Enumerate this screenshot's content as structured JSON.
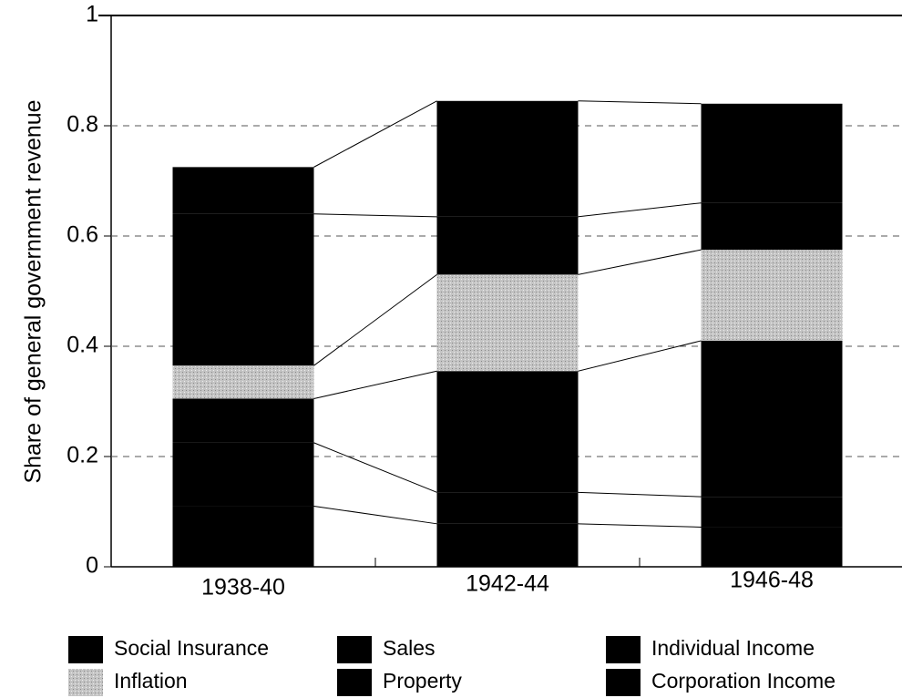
{
  "chart_data": {
    "type": "stacked_bar",
    "y_label": "Share of general government revenue",
    "categories": [
      "1938-40",
      "1942-44",
      "1946-48"
    ],
    "series": [
      {
        "name": "Social Insurance",
        "color": "#000000",
        "values": [
          0.11,
          0.078,
          0.072
        ]
      },
      {
        "name": "Sales",
        "color": "#000000",
        "values": [
          0.115,
          0.057,
          0.055
        ]
      },
      {
        "name": "Property",
        "color": "#000000",
        "values": [
          0.08,
          0.22,
          0.283
        ]
      },
      {
        "name": "Inflation",
        "color": "#c4c4c4",
        "values": [
          0.06,
          0.175,
          0.165
        ]
      },
      {
        "name": "Individual Income",
        "color": "#000000",
        "values": [
          0.275,
          0.105,
          0.085
        ]
      },
      {
        "name": "Corporation Income",
        "color": "#000000",
        "values": [
          0.085,
          0.21,
          0.18
        ]
      }
    ],
    "ylim": [
      0,
      1
    ],
    "yticks": [
      0,
      0.2,
      0.4,
      0.6,
      0.8,
      1
    ],
    "grid": true
  }
}
